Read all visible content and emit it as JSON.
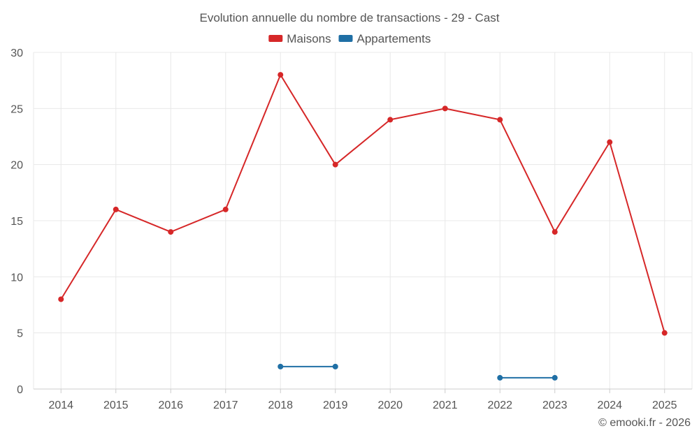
{
  "chart_data": {
    "type": "line",
    "title": "Evolution annuelle du nombre de transactions - 29 - Cast",
    "xlabel": "",
    "ylabel": "",
    "ylim": [
      0,
      30
    ],
    "yticks": [
      0,
      5,
      10,
      15,
      20,
      25,
      30
    ],
    "categories": [
      "2014",
      "2015",
      "2016",
      "2017",
      "2018",
      "2019",
      "2020",
      "2021",
      "2022",
      "2023",
      "2024",
      "2025"
    ],
    "grid": true,
    "legend_position": "top-center",
    "series": [
      {
        "name": "Maisons",
        "color": "#d62728",
        "values": [
          8,
          16,
          14,
          16,
          28,
          20,
          24,
          25,
          24,
          14,
          22,
          5
        ]
      },
      {
        "name": "Appartements",
        "color": "#1f6fa5",
        "values": [
          null,
          null,
          null,
          null,
          2,
          2,
          null,
          null,
          1,
          1,
          null,
          null
        ]
      }
    ]
  },
  "credit": "© emooki.fr - 2026",
  "colors": {
    "grid": "#e8e8e8",
    "axis": "#cccccc",
    "text": "#555555"
  }
}
